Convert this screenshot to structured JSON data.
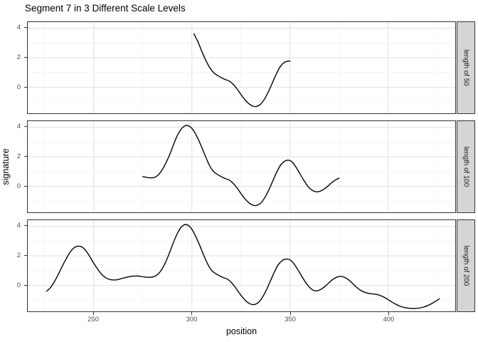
{
  "title": "Segment 7 in 3 Different Scale Levels",
  "colors": {
    "background": "#ffffff",
    "panel_fill": "#ffffff",
    "panel_border": "#333333",
    "grid_major": "#e3e3e3",
    "grid_minor": "#f1f1f1",
    "strip_fill": "#d5d5d5",
    "strip_border": "#333333",
    "tick_label": "#4d4d4d",
    "line": "#000000"
  },
  "chart_data": {
    "type": "line",
    "title": "Segment 7 in 3 Different Scale Levels",
    "xlabel": "position",
    "ylabel": "signature",
    "legend_position": "none",
    "grid": true,
    "xlim": [
      216.4,
      434.1
    ],
    "ylim": [
      -1.77,
      4.42
    ],
    "x_major_ticks": [
      250,
      300,
      350,
      400
    ],
    "x_minor_ticks": [
      225,
      275,
      325,
      375,
      425
    ],
    "y_major_ticks": [
      0,
      2,
      4
    ],
    "y_minor_ticks": [
      -1,
      1,
      3
    ],
    "facets": [
      {
        "label": "length of 50",
        "points": [
          [
            301,
            3.62
          ],
          [
            303,
            3.1
          ],
          [
            305,
            2.45
          ],
          [
            307,
            1.85
          ],
          [
            309,
            1.35
          ],
          [
            311,
            1.0
          ],
          [
            313,
            0.8
          ],
          [
            315,
            0.65
          ],
          [
            317,
            0.52
          ],
          [
            319,
            0.42
          ],
          [
            321,
            0.2
          ],
          [
            323,
            -0.12
          ],
          [
            325,
            -0.5
          ],
          [
            327,
            -0.85
          ],
          [
            329,
            -1.12
          ],
          [
            331,
            -1.28
          ],
          [
            333,
            -1.3
          ],
          [
            335,
            -1.15
          ],
          [
            337,
            -0.8
          ],
          [
            339,
            -0.3
          ],
          [
            341,
            0.3
          ],
          [
            343,
            0.9
          ],
          [
            345,
            1.4
          ],
          [
            347,
            1.68
          ],
          [
            349,
            1.77
          ],
          [
            350,
            1.77
          ]
        ]
      },
      {
        "label": "length of 100",
        "points": [
          [
            275,
            0.65
          ],
          [
            277,
            0.6
          ],
          [
            279,
            0.57
          ],
          [
            281,
            0.6
          ],
          [
            283,
            0.78
          ],
          [
            285,
            1.15
          ],
          [
            287,
            1.65
          ],
          [
            289,
            2.25
          ],
          [
            291,
            2.95
          ],
          [
            293,
            3.55
          ],
          [
            295,
            3.95
          ],
          [
            297,
            4.12
          ],
          [
            299,
            4.05
          ],
          [
            301,
            3.75
          ],
          [
            303,
            3.25
          ],
          [
            305,
            2.65
          ],
          [
            307,
            2.0
          ],
          [
            309,
            1.4
          ],
          [
            311,
            1.0
          ],
          [
            313,
            0.8
          ],
          [
            315,
            0.65
          ],
          [
            317,
            0.52
          ],
          [
            319,
            0.42
          ],
          [
            321,
            0.2
          ],
          [
            323,
            -0.12
          ],
          [
            325,
            -0.5
          ],
          [
            327,
            -0.85
          ],
          [
            329,
            -1.12
          ],
          [
            331,
            -1.28
          ],
          [
            333,
            -1.3
          ],
          [
            335,
            -1.15
          ],
          [
            337,
            -0.8
          ],
          [
            339,
            -0.3
          ],
          [
            341,
            0.3
          ],
          [
            343,
            0.9
          ],
          [
            345,
            1.4
          ],
          [
            347,
            1.68
          ],
          [
            349,
            1.77
          ],
          [
            351,
            1.65
          ],
          [
            353,
            1.3
          ],
          [
            355,
            0.85
          ],
          [
            357,
            0.4
          ],
          [
            359,
            0.0
          ],
          [
            361,
            -0.25
          ],
          [
            363,
            -0.37
          ],
          [
            365,
            -0.35
          ],
          [
            367,
            -0.22
          ],
          [
            369,
            -0.02
          ],
          [
            371,
            0.22
          ],
          [
            373,
            0.42
          ],
          [
            375,
            0.55
          ]
        ]
      },
      {
        "label": "length of 200",
        "points": [
          [
            226,
            -0.4
          ],
          [
            228,
            -0.15
          ],
          [
            230,
            0.25
          ],
          [
            232,
            0.75
          ],
          [
            234,
            1.3
          ],
          [
            236,
            1.8
          ],
          [
            238,
            2.25
          ],
          [
            240,
            2.55
          ],
          [
            242,
            2.65
          ],
          [
            244,
            2.6
          ],
          [
            246,
            2.35
          ],
          [
            248,
            1.95
          ],
          [
            250,
            1.5
          ],
          [
            252,
            1.1
          ],
          [
            254,
            0.75
          ],
          [
            256,
            0.52
          ],
          [
            258,
            0.4
          ],
          [
            260,
            0.36
          ],
          [
            262,
            0.38
          ],
          [
            264,
            0.45
          ],
          [
            266,
            0.52
          ],
          [
            268,
            0.58
          ],
          [
            270,
            0.62
          ],
          [
            272,
            0.63
          ],
          [
            274,
            0.6
          ],
          [
            276,
            0.56
          ],
          [
            278,
            0.54
          ],
          [
            280,
            0.56
          ],
          [
            282,
            0.68
          ],
          [
            284,
            0.95
          ],
          [
            286,
            1.4
          ],
          [
            288,
            2.0
          ],
          [
            290,
            2.7
          ],
          [
            292,
            3.35
          ],
          [
            294,
            3.85
          ],
          [
            296,
            4.1
          ],
          [
            298,
            4.08
          ],
          [
            300,
            3.8
          ],
          [
            302,
            3.3
          ],
          [
            304,
            2.7
          ],
          [
            306,
            2.05
          ],
          [
            308,
            1.45
          ],
          [
            310,
            1.02
          ],
          [
            312,
            0.8
          ],
          [
            314,
            0.65
          ],
          [
            316,
            0.52
          ],
          [
            318,
            0.42
          ],
          [
            320,
            0.2
          ],
          [
            322,
            -0.12
          ],
          [
            324,
            -0.5
          ],
          [
            326,
            -0.85
          ],
          [
            328,
            -1.12
          ],
          [
            330,
            -1.28
          ],
          [
            332,
            -1.3
          ],
          [
            334,
            -1.15
          ],
          [
            336,
            -0.8
          ],
          [
            338,
            -0.3
          ],
          [
            340,
            0.3
          ],
          [
            342,
            0.9
          ],
          [
            344,
            1.4
          ],
          [
            346,
            1.68
          ],
          [
            348,
            1.78
          ],
          [
            350,
            1.72
          ],
          [
            352,
            1.45
          ],
          [
            354,
            1.05
          ],
          [
            356,
            0.6
          ],
          [
            358,
            0.18
          ],
          [
            360,
            -0.15
          ],
          [
            362,
            -0.35
          ],
          [
            364,
            -0.37
          ],
          [
            366,
            -0.25
          ],
          [
            368,
            -0.05
          ],
          [
            370,
            0.2
          ],
          [
            372,
            0.42
          ],
          [
            374,
            0.56
          ],
          [
            376,
            0.6
          ],
          [
            378,
            0.52
          ],
          [
            380,
            0.35
          ],
          [
            382,
            0.1
          ],
          [
            384,
            -0.15
          ],
          [
            386,
            -0.35
          ],
          [
            388,
            -0.48
          ],
          [
            390,
            -0.55
          ],
          [
            392,
            -0.58
          ],
          [
            394,
            -0.62
          ],
          [
            396,
            -0.7
          ],
          [
            398,
            -0.82
          ],
          [
            400,
            -0.98
          ],
          [
            402,
            -1.15
          ],
          [
            404,
            -1.3
          ],
          [
            406,
            -1.42
          ],
          [
            408,
            -1.5
          ],
          [
            410,
            -1.55
          ],
          [
            412,
            -1.57
          ],
          [
            414,
            -1.57
          ],
          [
            416,
            -1.54
          ],
          [
            418,
            -1.48
          ],
          [
            420,
            -1.38
          ],
          [
            422,
            -1.25
          ],
          [
            424,
            -1.1
          ],
          [
            426,
            -0.92
          ]
        ]
      }
    ]
  }
}
